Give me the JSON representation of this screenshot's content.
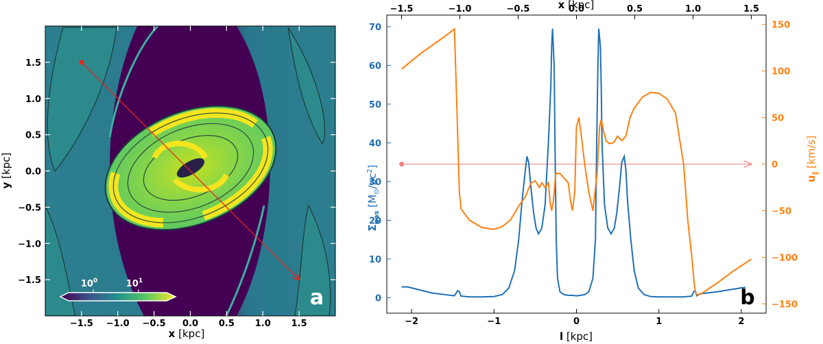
{
  "panel_a": {
    "letter": "a",
    "xlabel_bold": "x",
    "xlabel_unit": "[kpc]",
    "ylabel_bold": "y",
    "ylabel_unit": "[kpc]",
    "colorbar_tick_1": "10",
    "colorbar_tick_1_exp": "0",
    "colorbar_tick_2": "10",
    "colorbar_tick_2_exp": "1",
    "colors": {
      "background": "#440154",
      "halo": "#2c7f8e",
      "disk": "#7ad151",
      "ring": "#f5e51f",
      "sightline": "#e8251b"
    }
  },
  "panel_b": {
    "letter": "b",
    "top_xlabel_bold": "x",
    "top_xlabel_unit": "[kpc]",
    "bottom_xlabel_bold": "l",
    "bottom_xlabel_unit": "[kpc]",
    "left_ylabel_bold": "Σ",
    "left_ylabel_sub": "gas",
    "left_ylabel_unit": "[M",
    "left_ylabel_unit2": "/pc",
    "left_ylabel_sup": "2",
    "left_ylabel_close": "]",
    "right_ylabel_bold": "u",
    "right_ylabel_sub": "∥",
    "right_ylabel_unit": "[km/s]",
    "colors": {
      "sigma": "#1f6fb4",
      "velocity": "#ff7f0e",
      "arrow": "#f08080"
    }
  },
  "chart_data": [
    {
      "type": "heatmap",
      "panel": "a",
      "xlabel": "x [kpc]",
      "ylabel": "y [kpc]",
      "xlim": [
        -2.0,
        2.0
      ],
      "ylim": [
        -2.0,
        2.0
      ],
      "x_ticks": [
        -1.5,
        -1.0,
        -0.5,
        0.0,
        0.5,
        1.0,
        1.5
      ],
      "y_ticks": [
        -1.5,
        -1.0,
        -0.5,
        0.0,
        0.5,
        1.0,
        1.5
      ],
      "x_tick_labels": [
        "−1.5",
        "−1.0",
        "−0.5",
        "0.0",
        "0.5",
        "1.0",
        "1.5"
      ],
      "y_tick_labels": [
        "−1.5",
        "−1.0",
        "−0.5",
        "0.0",
        "0.5",
        "1.0",
        "1.5"
      ],
      "colorbar": {
        "scale": "log",
        "ticks": [
          "10^0",
          "10^1"
        ]
      },
      "sightline": {
        "start": [
          -1.5,
          1.5
        ],
        "end": [
          1.5,
          -1.5
        ]
      }
    },
    {
      "type": "line",
      "panel": "b",
      "xlabel": "l [kpc]",
      "top_xlabel": "x [kpc]",
      "ylabel": "Σgas [M⊙/pc²]",
      "y2label": "u∥ [km/s]",
      "xlim": [
        -2.3,
        2.3
      ],
      "ylim": [
        -4,
        73
      ],
      "y2lim": [
        -160,
        160
      ],
      "x_ticks": [
        -2,
        -1,
        0,
        1,
        2
      ],
      "x_tick_labels": [
        "−2",
        "−1",
        "0",
        "1",
        "2"
      ],
      "top_ticks": [
        -1.5,
        -1.0,
        -0.5,
        0.0,
        0.5,
        1.0,
        1.5
      ],
      "top_tick_labels": [
        "−1.5",
        "−1.0",
        "−0.5",
        "0.0",
        "0.5",
        "1.0",
        "1.5"
      ],
      "y_ticks": [
        0,
        10,
        20,
        30,
        40,
        50,
        60,
        70
      ],
      "y_tick_labels": [
        "0",
        "10",
        "20",
        "30",
        "40",
        "50",
        "60",
        "70"
      ],
      "y2_ticks": [
        150,
        100,
        50,
        0,
        -50,
        -100,
        -150
      ],
      "y2_tick_labels": [
        "150",
        "100",
        "50",
        "0",
        "−50",
        "−100",
        "−150"
      ],
      "series": [
        {
          "name": "Σgas",
          "axis": "left",
          "x": [
            -2.12,
            -2.05,
            -1.9,
            -1.75,
            -1.6,
            -1.48,
            -1.44,
            -1.42,
            -1.4,
            -1.3,
            -1.15,
            -1.0,
            -0.9,
            -0.82,
            -0.75,
            -0.7,
            -0.66,
            -0.62,
            -0.6,
            -0.58,
            -0.55,
            -0.52,
            -0.49,
            -0.46,
            -0.42,
            -0.38,
            -0.34,
            -0.31,
            -0.3,
            -0.29,
            -0.27,
            -0.26,
            -0.245,
            -0.23,
            -0.2,
            -0.15,
            -0.1,
            -0.05,
            0.0,
            0.05,
            0.1,
            0.15,
            0.2,
            0.23,
            0.245,
            0.26,
            0.27,
            0.29,
            0.3,
            0.31,
            0.34,
            0.38,
            0.42,
            0.46,
            0.49,
            0.52,
            0.55,
            0.58,
            0.6,
            0.62,
            0.66,
            0.7,
            0.75,
            0.82,
            0.9,
            1.0,
            1.15,
            1.3,
            1.4,
            1.42,
            1.44,
            1.46,
            1.5,
            1.7,
            1.9,
            2.05
          ],
          "values": [
            2.8,
            2.8,
            2.0,
            1.2,
            0.8,
            0.5,
            1.8,
            1.5,
            0.4,
            0.2,
            0.2,
            0.3,
            0.8,
            2.5,
            7,
            15,
            25,
            33,
            36.5,
            35,
            28,
            22,
            18,
            16.5,
            18,
            24,
            40,
            55,
            65,
            69.5,
            60,
            40,
            15,
            5,
            1.5,
            0.8,
            0.6,
            0.6,
            0.5,
            0.6,
            0.8,
            1.5,
            5,
            15,
            40,
            60,
            69.5,
            65,
            55,
            40,
            24,
            18,
            16.5,
            18,
            22,
            28,
            35,
            36.5,
            33,
            25,
            15,
            7,
            2.5,
            0.8,
            0.3,
            0.2,
            0.2,
            0.2,
            0.4,
            1.5,
            1.8,
            0.5,
            1.0,
            1.5,
            2.2,
            2.7
          ]
        },
        {
          "name": "u∥",
          "axis": "right",
          "x": [
            -2.12,
            -1.9,
            -1.6,
            -1.48,
            -1.45,
            -1.42,
            -1.4,
            -1.3,
            -1.15,
            -1.0,
            -0.9,
            -0.8,
            -0.7,
            -0.62,
            -0.55,
            -0.5,
            -0.45,
            -0.42,
            -0.38,
            -0.34,
            -0.32,
            -0.3,
            -0.28,
            -0.25,
            -0.2,
            -0.15,
            -0.1,
            -0.07,
            -0.05,
            -0.02,
            0.0,
            0.03,
            0.06,
            0.1,
            0.15,
            0.2,
            0.25,
            0.28,
            0.3,
            0.33,
            0.36,
            0.4,
            0.45,
            0.5,
            0.55,
            0.6,
            0.65,
            0.7,
            0.8,
            0.9,
            1.0,
            1.1,
            1.2,
            1.3,
            1.35,
            1.4,
            1.43,
            1.45,
            1.5,
            1.7,
            1.9,
            2.12
          ],
          "values": [
            102,
            118,
            137,
            145,
            60,
            -30,
            -48,
            -60,
            -68,
            -70,
            -67,
            -60,
            -45,
            -35,
            -20,
            -18,
            -25,
            -20,
            -25,
            -20,
            -40,
            -50,
            -40,
            -10,
            -10,
            -15,
            -20,
            -40,
            -50,
            -30,
            40,
            50,
            30,
            0,
            -30,
            -50,
            -10,
            40,
            48,
            35,
            25,
            22,
            23,
            30,
            25,
            30,
            50,
            60,
            72,
            77,
            76,
            70,
            55,
            0,
            -60,
            -100,
            -130,
            -140,
            -140,
            -128,
            -115,
            -102
          ]
        }
      ],
      "arrow": {
        "y2": 0,
        "x_start": -2.12,
        "x_end": 2.12
      }
    }
  ]
}
